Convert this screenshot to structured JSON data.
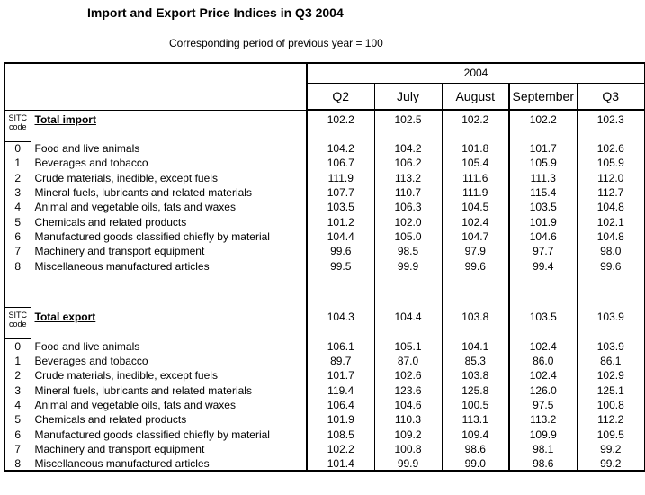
{
  "title": "Import and Export Price Indices in Q3 2004",
  "subtitle": "Corresponding period of previous year = 100",
  "colors": {
    "text": "#000000",
    "background": "#ffffff",
    "border": "#000000"
  },
  "table": {
    "year_header": "2004",
    "column_headers": [
      "Q2",
      "July",
      "August",
      "September",
      "Q3"
    ],
    "sitc_label_line1": "SITC",
    "sitc_label_line2": "code",
    "sections": [
      {
        "total_label": "Total import",
        "total_values": [
          "102.2",
          "102.5",
          "102.2",
          "102.2",
          "102.3"
        ],
        "rows": [
          {
            "code": "0",
            "label": "Food and live animals",
            "values": [
              "104.2",
              "104.2",
              "101.8",
              "101.7",
              "102.6"
            ]
          },
          {
            "code": "1",
            "label": "Beverages and tobacco",
            "values": [
              "106.7",
              "106.2",
              "105.4",
              "105.9",
              "105.9"
            ]
          },
          {
            "code": "2",
            "label": "Crude materials, inedible, except fuels",
            "values": [
              "111.9",
              "113.2",
              "111.6",
              "111.3",
              "112.0"
            ]
          },
          {
            "code": "3",
            "label": "Mineral fuels, lubricants and related materials",
            "values": [
              "107.7",
              "110.7",
              "111.9",
              "115.4",
              "112.7"
            ]
          },
          {
            "code": "4",
            "label": "Animal and vegetable oils, fats and waxes",
            "values": [
              "103.5",
              "106.3",
              "104.5",
              "103.5",
              "104.8"
            ]
          },
          {
            "code": "5",
            "label": "Chemicals and related products",
            "values": [
              "101.2",
              "102.0",
              "102.4",
              "101.9",
              "102.1"
            ]
          },
          {
            "code": "6",
            "label": "Manufactured goods classified chiefly by material",
            "values": [
              "104.4",
              "105.0",
              "104.7",
              "104.6",
              "104.8"
            ]
          },
          {
            "code": "7",
            "label": "Machinery and transport equipment",
            "values": [
              "99.6",
              "98.5",
              "97.9",
              "97.7",
              "98.0"
            ]
          },
          {
            "code": "8",
            "label": "Miscellaneous manufactured articles",
            "values": [
              "99.5",
              "99.9",
              "99.6",
              "99.4",
              "99.6"
            ]
          }
        ]
      },
      {
        "total_label": "Total export",
        "total_values": [
          "104.3",
          "104.4",
          "103.8",
          "103.5",
          "103.9"
        ],
        "rows": [
          {
            "code": "0",
            "label": "Food and live animals",
            "values": [
              "106.1",
              "105.1",
              "104.1",
              "102.4",
              "103.9"
            ]
          },
          {
            "code": "1",
            "label": "Beverages and tobacco",
            "values": [
              "89.7",
              "87.0",
              "85.3",
              "86.0",
              "86.1"
            ]
          },
          {
            "code": "2",
            "label": "Crude materials, inedible, except fuels",
            "values": [
              "101.7",
              "102.6",
              "103.8",
              "102.4",
              "102.9"
            ]
          },
          {
            "code": "3",
            "label": "Mineral fuels, lubricants and related materials",
            "values": [
              "119.4",
              "123.6",
              "125.8",
              "126.0",
              "125.1"
            ]
          },
          {
            "code": "4",
            "label": "Animal and vegetable oils, fats and waxes",
            "values": [
              "106.4",
              "104.6",
              "100.5",
              "97.5",
              "100.8"
            ]
          },
          {
            "code": "5",
            "label": "Chemicals and related products",
            "values": [
              "101.9",
              "110.3",
              "113.1",
              "113.2",
              "112.2"
            ]
          },
          {
            "code": "6",
            "label": "Manufactured goods classified chiefly by material",
            "values": [
              "108.5",
              "109.2",
              "109.4",
              "109.9",
              "109.5"
            ]
          },
          {
            "code": "7",
            "label": "Machinery and transport equipment",
            "values": [
              "102.2",
              "100.8",
              "98.6",
              "98.1",
              "99.2"
            ]
          },
          {
            "code": "8",
            "label": "Miscellaneous manufactured articles",
            "values": [
              "101.4",
              "99.9",
              "99.0",
              "98.6",
              "99.2"
            ]
          }
        ]
      }
    ]
  }
}
